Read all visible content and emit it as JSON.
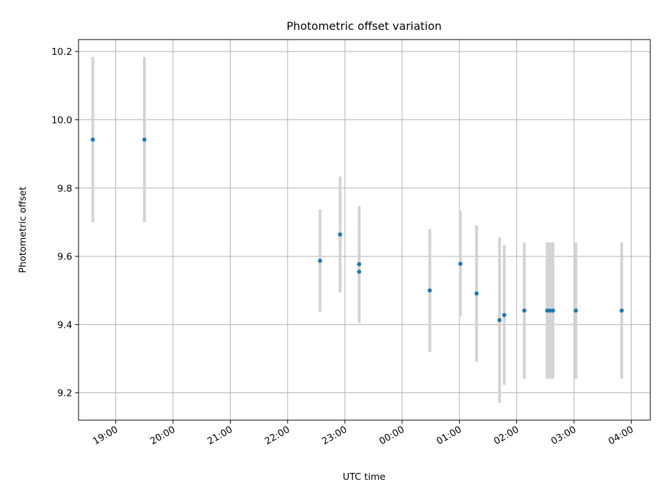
{
  "chart_data": {
    "type": "scatter",
    "title": "Photometric offset variation",
    "xlabel": "UTC time",
    "ylabel": "Photometric offset",
    "grid": true,
    "x_tick_labels": [
      "19:00",
      "20:00",
      "21:00",
      "22:00",
      "23:00",
      "00:00",
      "01:00",
      "02:00",
      "03:00",
      "04:00"
    ],
    "x_range": [
      "18:21",
      "04:20"
    ],
    "y_ticks": [
      9.2,
      9.4,
      9.6,
      9.8,
      10.0,
      10.2
    ],
    "y_tick_labels": [
      "9.2",
      "9.4",
      "9.6",
      "9.8",
      "10.0",
      "10.2"
    ],
    "ylim": [
      9.12,
      10.235
    ],
    "point_color": "#1f77b4",
    "errorbar_color": "#d3d3d3",
    "points": [
      {
        "t": "18:36",
        "y": 9.942,
        "err": 0.242
      },
      {
        "t": "19:30",
        "y": 9.942,
        "err": 0.242
      },
      {
        "t": "22:34",
        "y": 9.587,
        "err": 0.15
      },
      {
        "t": "22:55",
        "y": 9.664,
        "err": 0.17
      },
      {
        "t": "23:15",
        "y": 9.577,
        "err": 0.17
      },
      {
        "t": "23:15",
        "y": 9.555,
        "err": 0.15
      },
      {
        "t": "00:29",
        "y": 9.5,
        "err": 0.18
      },
      {
        "t": "01:01",
        "y": 9.578,
        "err": 0.155
      },
      {
        "t": "01:18",
        "y": 9.491,
        "err": 0.2
      },
      {
        "t": "01:42",
        "y": 9.413,
        "err": 0.243
      },
      {
        "t": "01:47",
        "y": 9.428,
        "err": 0.205
      },
      {
        "t": "02:08",
        "y": 9.441,
        "err": 0.2
      },
      {
        "t": "02:32",
        "y": 9.441,
        "err": 0.2
      },
      {
        "t": "02:35",
        "y": 9.441,
        "err": 0.2
      },
      {
        "t": "02:38",
        "y": 9.441,
        "err": 0.2
      },
      {
        "t": "03:02",
        "y": 9.441,
        "err": 0.2
      },
      {
        "t": "03:50",
        "y": 9.441,
        "err": 0.2
      }
    ]
  }
}
